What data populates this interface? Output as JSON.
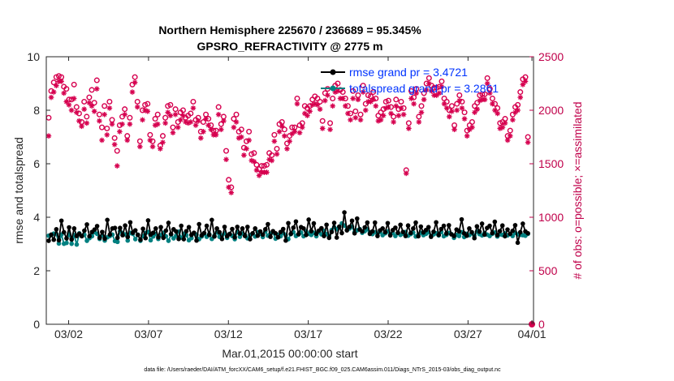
{
  "chart_data": {
    "type": "line",
    "title_line1": "Northern Hemisphere 225670 / 236689 = 95.345%",
    "title_line2": "GPSRO_REFRACTIVITY @ 2775 m",
    "xlabel": "Mar.01,2015 00:00:00 start",
    "ylabel_left": "rmse and totalspread",
    "ylabel_right": "# of obs: o=possible; ×=assimilated",
    "footer": "data file: /Users/raeder/DAI/ATM_forcXX/CAM6_setup/f.e21.FHIST_BGC.f09_025.CAM6assim.011/Diags_NTrS_2015-03/obs_diag_output.nc",
    "x_range": [
      0.6,
      31.1
    ],
    "y_left_range": [
      0,
      10
    ],
    "y_right_range": [
      0,
      2500
    ],
    "x_ticks": [
      {
        "value": 2,
        "label": "03/02"
      },
      {
        "value": 7,
        "label": "03/07"
      },
      {
        "value": 12,
        "label": "03/12"
      },
      {
        "value": 17,
        "label": "03/17"
      },
      {
        "value": 22,
        "label": "03/22"
      },
      {
        "value": 27,
        "label": "03/27"
      },
      {
        "value": 31,
        "label": "04/01"
      }
    ],
    "y_left_ticks": [
      "0",
      "2",
      "4",
      "6",
      "8",
      "10"
    ],
    "y_right_ticks": [
      "0",
      "500",
      "1000",
      "1500",
      "2000",
      "2500"
    ],
    "legend": [
      {
        "label": "rmse grand pr = 3.4721",
        "color": "#000000"
      },
      {
        "label": "totalspread grand pr = 3.2861",
        "color": "#008080"
      }
    ],
    "colors": {
      "rmse": "#000000",
      "spread": "#008080",
      "obs": "#d6004f",
      "legend_text": "#0033ff",
      "right_axis": "#c0004a"
    },
    "rmse": [
      3.12,
      3.35,
      3.16,
      3.55,
      3.14,
      3.87,
      3.44,
      3.21,
      3.62,
      3.17,
      3.58,
      3.3,
      3.38,
      3.29,
      3.5,
      3.73,
      3.29,
      3.45,
      3.54,
      3.67,
      3.23,
      3.45,
      3.2,
      3.9,
      3.35,
      3.58,
      3.6,
      3.23,
      3.6,
      3.33,
      3.69,
      3.26,
      3.81,
      3.42,
      3.51,
      3.34,
      3.16,
      3.57,
      3.22,
      3.88,
      3.35,
      3.42,
      3.58,
      3.25,
      3.63,
      3.23,
      3.5,
      3.79,
      3.37,
      3.55,
      3.47,
      3.19,
      3.68,
      3.18,
      3.48,
      3.63,
      3.34,
      3.42,
      3.13,
      3.74,
      3.32,
      3.41,
      3.68,
      3.34,
      3.9,
      3.28,
      3.58,
      3.44,
      3.19,
      3.64,
      3.29,
      3.37,
      3.56,
      3.25,
      3.64,
      3.39,
      3.58,
      3.3,
      3.64,
      3.18,
      3.4,
      3.58,
      3.31,
      3.47,
      3.35,
      3.55,
      3.74,
      3.27,
      3.48,
      3.4,
      3.25,
      3.45,
      3.56,
      3.13,
      3.78,
      3.38,
      3.61,
      3.84,
      3.37,
      3.63,
      3.58,
      3.34,
      3.91,
      3.48,
      3.77,
      3.38,
      3.5,
      3.59,
      3.3,
      3.72,
      3.23,
      3.45,
      3.79,
      3.24,
      3.65,
      3.41,
      4.18,
      3.51,
      3.64,
      3.87,
      3.4,
      3.95,
      3.54,
      3.47,
      3.62,
      3.8,
      3.38,
      3.47,
      3.8,
      3.3,
      3.51,
      3.58,
      3.44,
      3.78,
      3.32,
      3.52,
      3.61,
      3.42,
      3.72,
      3.45,
      3.3,
      3.69,
      3.41,
      3.58,
      3.8,
      3.29,
      3.65,
      3.43,
      3.52,
      3.63,
      3.27,
      3.46,
      3.81,
      3.34,
      3.56,
      3.68,
      3.39,
      3.7,
      3.36,
      3.3,
      3.54,
      3.47,
      3.92,
      3.4,
      3.31,
      3.58,
      3.44,
      3.22,
      3.66,
      3.46,
      3.76,
      3.35,
      3.6,
      3.68,
      3.41,
      3.83,
      3.33,
      3.48,
      3.69,
      3.29,
      3.54,
      3.38,
      3.49,
      3.7,
      3.05,
      3.44,
      3.76,
      3.47,
      3.4
    ],
    "spread": [
      3.31,
      3.33,
      3.39,
      3.37,
      3.02,
      3.35,
      3.01,
      3.04,
      3.39,
      3.01,
      3.33,
      2.98,
      3.4,
      3.3,
      3.35,
      3.12,
      3.22,
      3.29,
      3.44,
      3.38,
      3.19,
      3.32,
      3.13,
      3.25,
      3.3,
      3.35,
      3.11,
      3.08,
      3.48,
      3.4,
      3.36,
      3.13,
      3.42,
      3.38,
      3.18,
      3.35,
      3.12,
      3.3,
      3.41,
      3.45,
      3.14,
      3.28,
      3.38,
      3.19,
      3.33,
      3.42,
      3.29,
      3.12,
      3.35,
      3.21,
      3.31,
      3.46,
      3.24,
      3.38,
      3.33,
      3.14,
      3.22,
      3.4,
      3.35,
      3.18,
      3.28,
      3.38,
      3.27,
      3.37,
      3.19,
      3.31,
      3.44,
      3.27,
      3.32,
      3.4,
      3.23,
      3.38,
      3.3,
      3.18,
      3.45,
      3.27,
      3.39,
      3.34,
      3.21,
      3.33,
      3.39,
      3.28,
      3.44,
      3.38,
      3.26,
      3.47,
      3.31,
      3.39,
      3.43,
      3.2,
      3.34,
      3.29,
      3.41,
      3.33,
      3.18,
      3.37,
      3.44,
      3.3,
      3.35,
      3.43,
      3.29,
      3.47,
      3.38,
      3.34,
      3.42,
      3.29,
      3.45,
      3.36,
      3.49,
      3.37,
      3.3,
      3.52,
      3.63,
      3.55,
      3.64,
      3.77,
      3.69,
      3.52,
      3.58,
      3.65,
      3.44,
      3.51,
      3.56,
      3.42,
      3.48,
      3.55,
      3.43,
      3.37,
      3.44,
      3.39,
      3.45,
      3.33,
      3.4,
      3.47,
      3.36,
      3.42,
      3.3,
      3.41,
      3.34,
      3.39,
      3.45,
      3.31,
      3.37,
      3.43,
      3.28,
      3.35,
      3.42,
      3.33,
      3.38,
      3.44,
      3.3,
      3.36,
      3.4,
      3.32,
      3.45,
      3.29,
      3.34,
      3.41,
      3.37,
      3.23,
      3.34,
      3.3,
      3.44,
      3.26,
      3.38,
      3.33,
      3.4,
      3.31,
      3.46,
      3.37,
      3.32,
      3.41,
      3.35,
      3.3,
      3.38,
      3.43,
      3.28,
      3.36,
      3.34,
      3.4,
      3.32,
      3.37,
      3.3,
      3.42,
      3.36,
      3.34,
      3.33,
      3.31,
      3.38
    ],
    "obs_possible": [
      1930,
      2180,
      2260,
      2310,
      2320,
      2310,
      2220,
      2200,
      2100,
      2100,
      2240,
      2030,
      1970,
      1890,
      2080,
      1940,
      2120,
      2190,
      2070,
      2280,
      1960,
      1840,
      2040,
      1830,
      2080,
      1910,
      1740,
      1620,
      1860,
      1940,
      2010,
      1760,
      1930,
      2240,
      2310,
      2080,
      1710,
      2000,
      2050,
      2060,
      1770,
      1710,
      1920,
      1960,
      1670,
      1760,
      1930,
      2040,
      2050,
      1840,
      2010,
      1890,
      1980,
      2000,
      1930,
      1950,
      1970,
      2080,
      1910,
      1930,
      1800,
      1890,
      1960,
      1920,
      1860,
      1810,
      1810,
      2030,
      1870,
      1940,
      1620,
      1350,
      1280,
      1920,
      1960,
      1800,
      1820,
      1650,
      1710,
      1800,
      1590,
      1600,
      1490,
      1450,
      1480,
      1480,
      1490,
      1600,
      1580,
      1770,
      1640,
      1870,
      1890,
      1820,
      1690,
      1760,
      1840,
      1840,
      2110,
      1860,
      1880,
      2040,
      2020,
      2040,
      2100,
      2130,
      2110,
      2080,
      1900,
      2160,
      2200,
      1880,
      2110,
      2230,
      2250,
      2190,
      2170,
      2110,
      2040,
      1970,
      2180,
      1990,
      2140,
      1960,
      2230,
      2060,
      2140,
      2130,
      2170,
      2110,
      1950,
      1980,
      2010,
      2080,
      2090,
      2030,
      1940,
      2100,
      2010,
      2080,
      2020,
      1440,
      1880,
      2180,
      2120,
      2200,
      1940,
      2040,
      2160,
      2250,
      2300,
      2230,
      2210,
      2210,
      2220,
      2270,
      2110,
      2080,
      2000,
      2040,
      1860,
      2060,
      2140,
      2080,
      1980,
      1810,
      1860,
      1890,
      2040,
      2070,
      2140,
      2150,
      2150,
      2300,
      2200,
      2110,
      2060,
      2020,
      1880,
      1890,
      1920,
      1760,
      1810,
      1960,
      2030,
      2050,
      2170,
      2290,
      2310,
      1750
    ],
    "obs_assimilated": [
      1760,
      2120,
      2170,
      2230,
      2270,
      2270,
      2160,
      2080,
      2050,
      2000,
      2110,
      1980,
      1900,
      1850,
      2010,
      1880,
      2070,
      2040,
      1990,
      2200,
      1900,
      1720,
      1960,
      1770,
      2020,
      1870,
      1680,
      1480,
      1800,
      1870,
      1960,
      1720,
      1870,
      2170,
      2260,
      2030,
      1660,
      1910,
      2000,
      1990,
      1720,
      1660,
      1860,
      1870,
      1640,
      1700,
      1880,
      1980,
      1950,
      1790,
      1960,
      1840,
      1910,
      1950,
      1890,
      1880,
      1890,
      2020,
      1860,
      1900,
      1740,
      1800,
      1920,
      1860,
      1820,
      1770,
      1770,
      1960,
      1820,
      1900,
      1540,
      1280,
      1230,
      1840,
      1890,
      1740,
      1750,
      1580,
      1640,
      1720,
      1530,
      1520,
      1440,
      1390,
      1420,
      1420,
      1420,
      1540,
      1530,
      1710,
      1590,
      1800,
      1850,
      1760,
      1640,
      1710,
      1780,
      1800,
      2060,
      1790,
      1840,
      1970,
      1950,
      1990,
      2050,
      2060,
      2050,
      2010,
      1830,
      2090,
      2140,
      1820,
      2040,
      2170,
      2180,
      2110,
      2110,
      2040,
      1970,
      1910,
      2110,
      1930,
      2100,
      1910,
      2170,
      2000,
      2080,
      2080,
      2100,
      2040,
      1900,
      1910,
      1950,
      2020,
      2030,
      1970,
      1890,
      2040,
      1950,
      2020,
      1960,
      1410,
      1830,
      2110,
      2060,
      2160,
      1890,
      1980,
      2100,
      2190,
      2250,
      2180,
      2140,
      2140,
      2160,
      2220,
      2060,
      2020,
      1940,
      1990,
      1820,
      2000,
      2090,
      2020,
      1920,
      1760,
      1820,
      1840,
      1980,
      2010,
      2090,
      2100,
      2100,
      2250,
      2160,
      2060,
      2000,
      1970,
      1830,
      1840,
      1880,
      1720,
      1760,
      1910,
      1980,
      2000,
      2120,
      2240,
      2270,
      1700
    ],
    "end_obs_possible": {
      "x": 31,
      "value": 0
    }
  }
}
